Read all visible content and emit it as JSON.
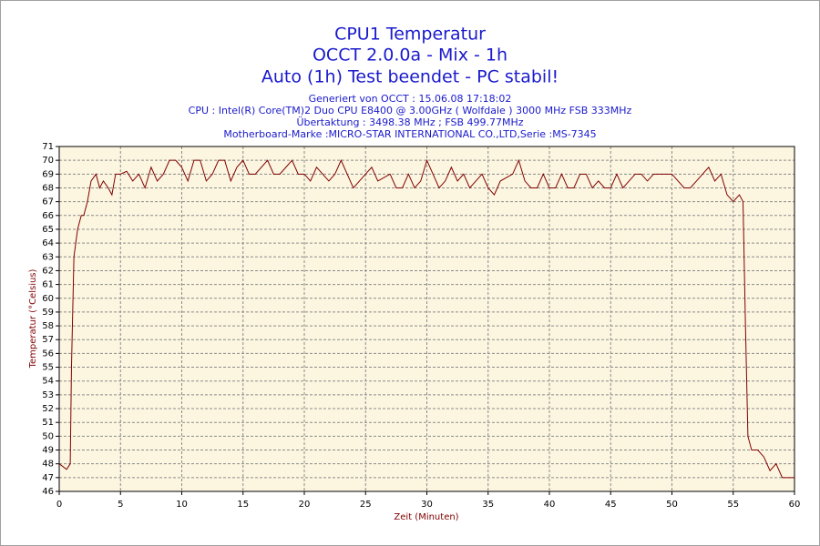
{
  "chart_data": {
    "type": "line",
    "title": "CPU1 Temperatur",
    "subtitle": [
      "OCCT 2.0.0a - Mix - 1h",
      "Auto (1h) Test beendet - PC stabil!"
    ],
    "info": [
      "Generiert von OCCT : 15.06.08 17:18:02",
      "CPU : Intel(R) Core(TM)2 Duo CPU E8400 @ 3.00GHz ( Wolfdale ) 3000 MHz FSB 333MHz",
      "Übertaktung : 3498.38 MHz ; FSB 499.77MHz",
      "Motherboard-Marke :MICRO-STAR INTERNATIONAL CO.,LTD,Serie :MS-7345"
    ],
    "x_label": "Zeit (Minuten)",
    "y_label": "Temperatur (°Celsius)",
    "color": "#800000",
    "grid": true,
    "xlim": [
      0,
      60
    ],
    "xticks": [
      0,
      5,
      10,
      15,
      20,
      25,
      30,
      35,
      40,
      45,
      50,
      55,
      60
    ],
    "ylim": [
      46,
      71
    ],
    "yticks": [
      46,
      47,
      48,
      49,
      50,
      51,
      52,
      53,
      54,
      55,
      56,
      57,
      58,
      59,
      60,
      61,
      62,
      63,
      64,
      65,
      66,
      67,
      68,
      69,
      70,
      71
    ],
    "x": [
      0,
      0.3,
      0.6,
      0.9,
      1.0,
      1.2,
      1.5,
      1.8,
      2.0,
      2.3,
      2.6,
      3,
      3.3,
      3.6,
      4,
      4.3,
      4.6,
      5,
      5.5,
      6,
      6.5,
      7,
      7.5,
      8,
      8.5,
      9,
      9.5,
      10,
      10.5,
      11,
      11.5,
      12,
      12.5,
      13,
      13.5,
      14,
      14.5,
      15,
      15.5,
      16,
      17,
      17.5,
      18,
      18.5,
      19,
      19.5,
      20,
      20.5,
      21,
      21.5,
      22,
      22.5,
      23,
      23.5,
      24,
      24.5,
      25,
      25.5,
      26,
      27,
      27.5,
      28,
      28.5,
      29,
      29.5,
      30,
      30.5,
      31,
      31.5,
      32,
      32.5,
      33,
      33.5,
      34,
      34.5,
      35,
      35.5,
      36,
      37,
      37.5,
      38,
      38.5,
      39,
      39.5,
      40,
      40.5,
      41,
      41.5,
      42,
      42.5,
      43,
      43.5,
      44,
      44.5,
      45,
      45.5,
      46,
      46.5,
      47,
      47.5,
      48,
      48.5,
      49,
      50,
      50.5,
      51,
      51.5,
      52,
      52.5,
      53,
      53.5,
      54,
      54.5,
      55,
      55.5,
      55.8,
      56,
      56.2,
      56.5,
      57,
      57.5,
      58,
      58.5,
      59,
      59.5,
      60
    ],
    "values": [
      48,
      47.8,
      47.6,
      48,
      55,
      63,
      65,
      66,
      66,
      67,
      68.5,
      69,
      68,
      68.5,
      68,
      67.5,
      69,
      69,
      69.2,
      68.5,
      69,
      68,
      69.5,
      68.5,
      69,
      70,
      70,
      69.5,
      68.5,
      70,
      70,
      68.5,
      69,
      70,
      70,
      68.5,
      69.5,
      70,
      69,
      69,
      70,
      69,
      69,
      69.5,
      70,
      69,
      69,
      68.5,
      69.5,
      69,
      68.5,
      69,
      70,
      69,
      68,
      68.5,
      69,
      69.5,
      68.5,
      69,
      68,
      68,
      69,
      68,
      68.5,
      70,
      69,
      68,
      68.5,
      69.5,
      68.5,
      69,
      68,
      68.5,
      69,
      68,
      67.5,
      68.5,
      69,
      70,
      68.5,
      68,
      68,
      69,
      68,
      68,
      69,
      68,
      68,
      69,
      69,
      68,
      68.5,
      68,
      68,
      69,
      68,
      68.5,
      69,
      69,
      68.5,
      69,
      69,
      69,
      68.5,
      68,
      68,
      68.5,
      69,
      69.5,
      68.5,
      69,
      67.5,
      67,
      67.5,
      67,
      58,
      50,
      49,
      49,
      48.5,
      47.5,
      48,
      47,
      47,
      47
    ]
  }
}
